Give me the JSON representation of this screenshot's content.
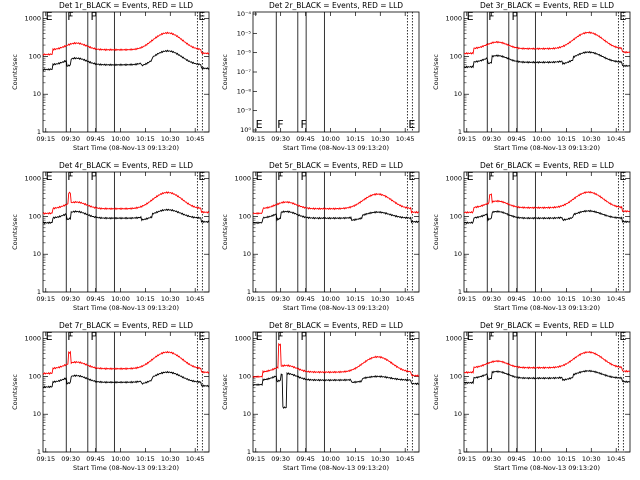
{
  "figure": {
    "common": {
      "ylabel": "Counts/sec",
      "xlabel": "Start Time (08-Nov-13 09:13:20)",
      "xticks": [
        "09:15",
        "09:30",
        "09:45",
        "10:00",
        "10:15",
        "10:30",
        "10:45"
      ],
      "yticks_log": [
        "1",
        "10",
        "100",
        "1000"
      ],
      "flag_labels": [
        "E",
        "F",
        "F",
        "E"
      ],
      "colors": {
        "events": "#000000",
        "lld": "#ff0000",
        "axes": "#000000"
      }
    }
  },
  "chart_data": [
    {
      "type": "line",
      "panel": 1,
      "title": "Det 1r_BLACK = Events, RED = LLD",
      "x_range_min": [
        0,
        100
      ],
      "y_scale": "log",
      "ylim": [
        1,
        1500
      ],
      "series": [
        {
          "name": "Events",
          "color": "#000000",
          "baseline": 60,
          "peak": 140,
          "dip_step": true,
          "spike": null
        },
        {
          "name": "LLD",
          "color": "#ff0000",
          "baseline": 150,
          "peak": 420,
          "spike": null
        }
      ]
    },
    {
      "type": "line",
      "panel": 2,
      "title": "Det 2r_BLACK = Events, RED = LLD",
      "x_range_min": [
        0,
        100
      ],
      "y_scale": "log",
      "ylim": [
        1e-05,
        0.0001
      ],
      "yticks": [
        "10⁻⁴",
        "10⁻⁵",
        "10⁻⁶",
        "10⁻⁷",
        "10⁻⁸",
        "10⁻⁹",
        "10⁰"
      ],
      "series": []
    },
    {
      "type": "line",
      "panel": 3,
      "title": "Det 3r_BLACK = Events, RED = LLD",
      "x_range_min": [
        0,
        100
      ],
      "y_scale": "log",
      "ylim": [
        1,
        1500
      ],
      "series": [
        {
          "name": "Events",
          "color": "#000000",
          "baseline": 70,
          "peak": 130,
          "dip_step": true,
          "spike": null
        },
        {
          "name": "LLD",
          "color": "#ff0000",
          "baseline": 160,
          "peak": 430,
          "spike": null
        }
      ]
    },
    {
      "type": "line",
      "panel": 4,
      "title": "Det 4r_BLACK = Events, RED = LLD",
      "x_range_min": [
        0,
        100
      ],
      "y_scale": "log",
      "ylim": [
        1,
        1500
      ],
      "series": [
        {
          "name": "Events",
          "color": "#000000",
          "baseline": 90,
          "peak": 150,
          "dip_step": true,
          "spike": null
        },
        {
          "name": "LLD",
          "color": "#ff0000",
          "baseline": 160,
          "peak": 430,
          "spike": 420
        }
      ]
    },
    {
      "type": "line",
      "panel": 5,
      "title": "Det 5r_BLACK = Events, RED = LLD",
      "x_range_min": [
        0,
        100
      ],
      "y_scale": "log",
      "ylim": [
        1,
        1500
      ],
      "series": [
        {
          "name": "Events",
          "color": "#000000",
          "baseline": 90,
          "peak": 130,
          "dip_step": true,
          "spike": null
        },
        {
          "name": "LLD",
          "color": "#ff0000",
          "baseline": 160,
          "peak": 390,
          "spike": null
        }
      ]
    },
    {
      "type": "line",
      "panel": 6,
      "title": "Det 6r_BLACK = Events, RED = LLD",
      "x_range_min": [
        0,
        100
      ],
      "y_scale": "log",
      "ylim": [
        1,
        1500
      ],
      "series": [
        {
          "name": "Events",
          "color": "#000000",
          "baseline": 90,
          "peak": 140,
          "dip_step": true,
          "spike": null
        },
        {
          "name": "LLD",
          "color": "#ff0000",
          "baseline": 170,
          "peak": 440,
          "spike": 380
        }
      ]
    },
    {
      "type": "line",
      "panel": 7,
      "title": "Det 7r_BLACK = Events, RED = LLD",
      "x_range_min": [
        0,
        100
      ],
      "y_scale": "log",
      "ylim": [
        1,
        1500
      ],
      "series": [
        {
          "name": "Events",
          "color": "#000000",
          "baseline": 70,
          "peak": 130,
          "dip_step": true,
          "spike": null
        },
        {
          "name": "LLD",
          "color": "#ff0000",
          "baseline": 160,
          "peak": 440,
          "spike": 430
        }
      ]
    },
    {
      "type": "line",
      "panel": 8,
      "title": "Det 8r_BLACK = Events, RED = LLD",
      "x_range_min": [
        0,
        100
      ],
      "y_scale": "log",
      "ylim": [
        1,
        1500
      ],
      "series": [
        {
          "name": "Events",
          "color": "#000000",
          "baseline": 80,
          "peak": 100,
          "dip_step": true,
          "spike": null,
          "dropout": 15
        },
        {
          "name": "LLD",
          "color": "#ff0000",
          "baseline": 130,
          "peak": 330,
          "spike": 700
        }
      ]
    },
    {
      "type": "line",
      "panel": 9,
      "title": "Det 9r_BLACK = Events, RED = LLD",
      "x_range_min": [
        0,
        100
      ],
      "y_scale": "log",
      "ylim": [
        1,
        1500
      ],
      "series": [
        {
          "name": "Events",
          "color": "#000000",
          "baseline": 90,
          "peak": 140,
          "dip_step": true,
          "spike": null
        },
        {
          "name": "LLD",
          "color": "#ff0000",
          "baseline": 170,
          "peak": 440,
          "spike": null
        }
      ]
    }
  ]
}
